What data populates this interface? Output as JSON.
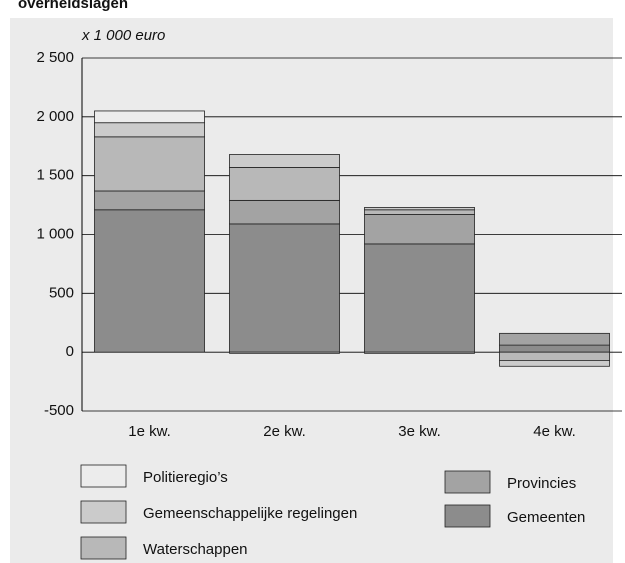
{
  "chart_data": {
    "type": "stacked_bar",
    "title": "overheidslagen",
    "y_label": "x 1 000 euro",
    "categories": [
      "1e kw.",
      "2e kw.",
      "3e kw.",
      "4e kw."
    ],
    "series": [
      {
        "name": "Gemeenten",
        "color": "#8c8c8c",
        "values": [
          1210,
          1090,
          920,
          60
        ]
      },
      {
        "name": "Provincies",
        "color": "#a3a3a3",
        "values": [
          160,
          200,
          250,
          100
        ]
      },
      {
        "name": "Waterschappen",
        "color": "#b8b8b8",
        "values": [
          460,
          280,
          40,
          -70
        ]
      },
      {
        "name": "Gemeenschappelijke regelingen",
        "color": "#cbcbcb",
        "values": [
          120,
          110,
          20,
          -50
        ]
      },
      {
        "name": "Politieregio’s",
        "color": "#ececec",
        "values": [
          100,
          -10,
          -10,
          0
        ]
      }
    ],
    "ylim": [
      -500,
      2500
    ],
    "yticks": [
      -500,
      0,
      500,
      {
        "value": 1000,
        "label": "1 000"
      },
      {
        "value": 1500,
        "label": "1 500"
      },
      {
        "value": 2000,
        "label": "2 000"
      },
      {
        "value": 2500,
        "label": "2 500"
      }
    ],
    "grid": true
  }
}
